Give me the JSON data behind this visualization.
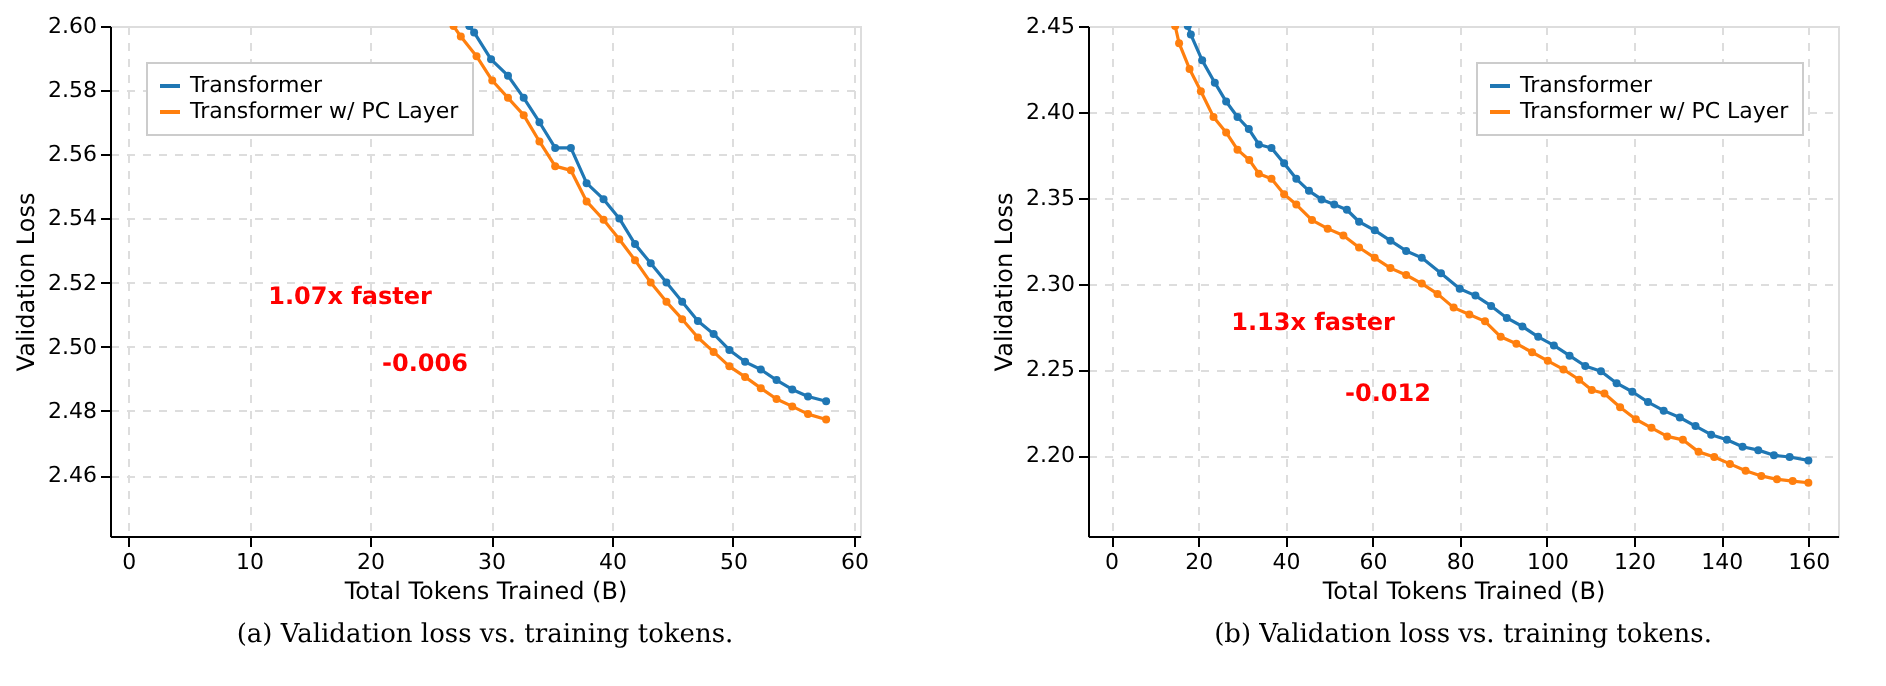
{
  "chart_data": [
    {
      "type": "line",
      "xlabel": "Total Tokens Trained (B)",
      "ylabel": "Validation Loss",
      "xlim": [
        -1.5,
        60.5
      ],
      "ylim": [
        2.441,
        2.6
      ],
      "xticks": [
        0,
        10,
        20,
        30,
        40,
        50,
        60
      ],
      "yticks": [
        {
          "value": 2.46,
          "label": "2.46"
        },
        {
          "value": 2.48,
          "label": "2.48"
        },
        {
          "value": 2.5,
          "label": "2.50"
        },
        {
          "value": 2.52,
          "label": "2.52"
        },
        {
          "value": 2.54,
          "label": "2.54"
        },
        {
          "value": 2.56,
          "label": "2.56"
        },
        {
          "value": 2.58,
          "label": "2.58"
        },
        {
          "value": 2.6,
          "label": "2.60"
        }
      ],
      "grid": true,
      "legend": "top left",
      "marker": "circle",
      "line_style": "solid",
      "annotations": [
        "1.07x faster",
        "-0.006",
        "(a) Validation loss vs. training tokens."
      ],
      "series": [
        {
          "name": "Transformer",
          "color": "#1f77b4",
          "x": [
            28.2,
            28.6,
            30.0,
            31.4,
            32.7,
            34.0,
            35.3,
            36.6,
            37.9,
            39.3,
            40.6,
            41.9,
            43.2,
            44.5,
            45.8,
            47.1,
            48.4,
            49.7,
            51.0,
            52.3,
            53.6,
            54.9,
            56.2,
            57.7
          ],
          "values": [
            2.6,
            2.598,
            2.5896,
            2.5845,
            2.5776,
            2.57,
            2.562,
            2.562,
            2.551,
            2.546,
            2.54,
            2.532,
            2.526,
            2.52,
            2.514,
            2.508,
            2.504,
            2.499,
            2.4953,
            2.4929,
            2.4896,
            2.4867,
            2.4845,
            2.483
          ]
        },
        {
          "name": "Transformer w/ PC Layer",
          "color": "#ff7f0e",
          "x": [
            26.9,
            27.5,
            28.8,
            30.1,
            31.4,
            32.7,
            34.0,
            35.3,
            36.6,
            37.9,
            39.3,
            40.6,
            41.9,
            43.2,
            44.5,
            45.8,
            47.1,
            48.4,
            49.7,
            51.0,
            52.3,
            53.6,
            54.9,
            56.2,
            57.7
          ],
          "values": [
            2.6,
            2.5967,
            2.5906,
            2.583,
            2.5776,
            2.5722,
            2.564,
            2.5563,
            2.555,
            2.5453,
            2.5396,
            2.5335,
            2.527,
            2.52,
            2.514,
            2.5086,
            2.5029,
            2.4984,
            2.4939,
            2.4906,
            2.4871,
            2.4837,
            2.4814,
            2.479,
            2.4773
          ]
        }
      ]
    },
    {
      "type": "line",
      "xlabel": "Total Tokens Trained (B)",
      "ylabel": "Validation Loss",
      "xlim": [
        -5.3,
        166.8
      ],
      "ylim": [
        2.153,
        2.45
      ],
      "xticks": [
        0,
        20,
        40,
        60,
        80,
        100,
        120,
        140,
        160
      ],
      "yticks": [
        {
          "value": 2.2,
          "label": "2.20"
        },
        2.25,
        {
          "value": 2.3,
          "label": "2.30"
        },
        2.35,
        {
          "value": 2.4,
          "label": "2.40"
        },
        2.45
      ],
      "grid": true,
      "legend": "top right",
      "marker": "circle",
      "line_style": "solid",
      "annotations": [
        "1.13x faster",
        "-0.012",
        "(b) Validation loss vs. training tokens."
      ],
      "series": [
        {
          "name": "Transformer",
          "color": "#1f77b4",
          "x": [
            17.6,
            18.3,
            20.9,
            23.8,
            26.4,
            29.0,
            31.6,
            33.9,
            36.8,
            39.7,
            42.5,
            45.4,
            48.3,
            51.2,
            54.1,
            56.9,
            60.5,
            64.1,
            67.7,
            71.3,
            75.7,
            80.0,
            83.6,
            87.2,
            90.8,
            94.4,
            98.0,
            101.6,
            105.2,
            108.8,
            112.4,
            116.0,
            119.6,
            123.2,
            126.8,
            130.5,
            134.1,
            137.7,
            141.3,
            144.9,
            148.5,
            152.1,
            155.7,
            160.0
          ],
          "values": [
            2.45,
            2.445,
            2.43,
            2.417,
            2.406,
            2.397,
            2.39,
            2.381,
            2.379,
            2.37,
            2.361,
            2.354,
            2.349,
            2.346,
            2.343,
            2.336,
            2.331,
            2.325,
            2.319,
            2.315,
            2.306,
            2.297,
            2.293,
            2.287,
            2.28,
            2.275,
            2.269,
            2.264,
            2.258,
            2.252,
            2.249,
            2.242,
            2.237,
            2.231,
            2.226,
            2.222,
            2.217,
            2.212,
            2.209,
            2.205,
            2.203,
            2.2,
            2.199,
            2.197
          ]
        },
        {
          "name": "Transformer w/ PC Layer",
          "color": "#ff7f0e",
          "x": [
            14.7,
            15.6,
            18.0,
            20.6,
            23.5,
            26.4,
            29.0,
            31.7,
            33.9,
            36.8,
            39.7,
            42.5,
            46.1,
            49.7,
            53.3,
            56.9,
            60.5,
            64.1,
            67.7,
            71.3,
            74.9,
            78.6,
            82.2,
            85.8,
            89.4,
            93.0,
            96.6,
            100.2,
            103.8,
            107.4,
            110.3,
            113.2,
            116.8,
            120.4,
            124.0,
            127.6,
            131.2,
            134.8,
            138.4,
            142.0,
            145.6,
            149.2,
            152.8,
            156.4,
            160.0
          ],
          "values": [
            2.45,
            2.44,
            2.425,
            2.412,
            2.397,
            2.388,
            2.378,
            2.372,
            2.364,
            2.361,
            2.352,
            2.346,
            2.337,
            2.332,
            2.328,
            2.321,
            2.315,
            2.309,
            2.305,
            2.3,
            2.294,
            2.286,
            2.282,
            2.278,
            2.269,
            2.265,
            2.26,
            2.255,
            2.25,
            2.244,
            2.238,
            2.236,
            2.228,
            2.221,
            2.216,
            2.211,
            2.209,
            2.202,
            2.199,
            2.195,
            2.191,
            2.188,
            2.186,
            2.185,
            2.184
          ]
        }
      ]
    }
  ]
}
